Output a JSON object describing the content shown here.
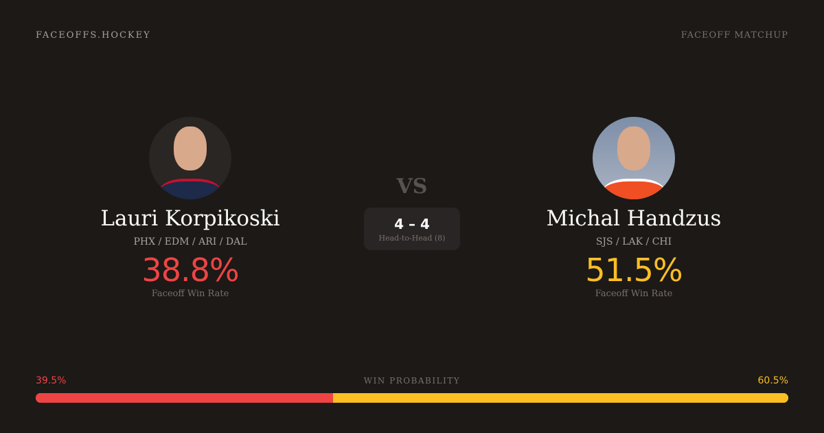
{
  "header": {
    "brand": "FACEOFFS.HOCKEY",
    "tag": "FACEOFF MATCHUP"
  },
  "players": [
    {
      "name": "Lauri Korpikoski",
      "teams": "PHX / EDM / ARI / DAL",
      "win_rate": "38.8%",
      "win_rate_label": "Faceoff Win Rate",
      "color": "#ef4444"
    },
    {
      "name": "Michal Handzus",
      "teams": "SJS / LAK / CHI",
      "win_rate": "51.5%",
      "win_rate_label": "Faceoff Win Rate",
      "color": "#fbbf24"
    }
  ],
  "vs": "VS",
  "head_to_head": {
    "score": "4 – 4",
    "label": "Head-to-Head (8)"
  },
  "win_probability": {
    "label": "WIN PROBABILITY",
    "left": "39.5%",
    "right": "60.5%",
    "left_fraction": 0.395
  }
}
